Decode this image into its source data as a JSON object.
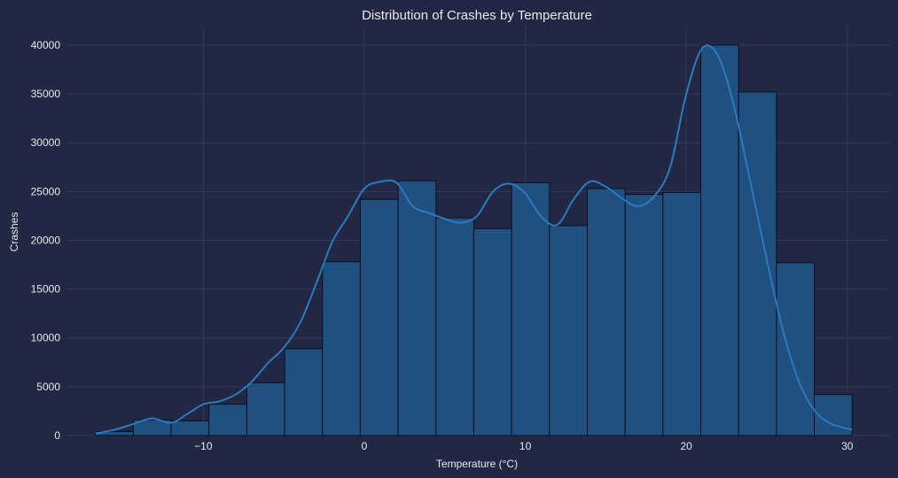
{
  "colors": {
    "background": "#222844",
    "bar_fill": "#1f5080",
    "bar_edge": "#0a0f1e",
    "kde_line": "#2a7bbf",
    "grid": "#303a5e",
    "text": "#e8e8ee"
  },
  "chart_data": {
    "type": "bar",
    "subtype": "histogram",
    "title": "Distribution of Crashes by Temperature",
    "xlabel": "Temperature (°C)",
    "ylabel": "Crashes",
    "xlim": [
      -18.5,
      32.6
    ],
    "ylim": [
      0,
      41900
    ],
    "xticks": [
      -10,
      0,
      10,
      20,
      30
    ],
    "xtick_labels": [
      "−10",
      "0",
      "10",
      "20",
      "30"
    ],
    "yticks": [
      0,
      5000,
      10000,
      15000,
      20000,
      25000,
      30000,
      35000,
      40000
    ],
    "ytick_labels": [
      "0",
      "5000",
      "10000",
      "15000",
      "20000",
      "25000",
      "30000",
      "35000",
      "40000"
    ],
    "grid": true,
    "bins": [
      {
        "x0": -16.7,
        "x1": -14.35,
        "value": 400
      },
      {
        "x0": -14.35,
        "x1": -12.0,
        "value": 1600
      },
      {
        "x0": -12.0,
        "x1": -9.65,
        "value": 1500
      },
      {
        "x0": -9.65,
        "x1": -7.3,
        "value": 3200
      },
      {
        "x0": -7.3,
        "x1": -4.95,
        "value": 5400
      },
      {
        "x0": -4.95,
        "x1": -2.6,
        "value": 8900
      },
      {
        "x0": -2.6,
        "x1": -0.25,
        "value": 17800
      },
      {
        "x0": -0.25,
        "x1": 2.1,
        "value": 24200
      },
      {
        "x0": 2.1,
        "x1": 4.45,
        "value": 26100
      },
      {
        "x0": 4.45,
        "x1": 6.8,
        "value": 22300
      },
      {
        "x0": 6.8,
        "x1": 9.15,
        "value": 21200
      },
      {
        "x0": 9.15,
        "x1": 11.5,
        "value": 25900
      },
      {
        "x0": 11.5,
        "x1": 13.85,
        "value": 21500
      },
      {
        "x0": 13.85,
        "x1": 16.2,
        "value": 25300
      },
      {
        "x0": 16.2,
        "x1": 18.55,
        "value": 24700
      },
      {
        "x0": 18.55,
        "x1": 20.9,
        "value": 24900
      },
      {
        "x0": 20.9,
        "x1": 23.25,
        "value": 40000
      },
      {
        "x0": 23.25,
        "x1": 25.6,
        "value": 35200
      },
      {
        "x0": 25.6,
        "x1": 27.95,
        "value": 17700
      },
      {
        "x0": 27.95,
        "x1": 30.3,
        "value": 4200
      }
    ],
    "kde": {
      "x": [
        -16.7,
        -15.5,
        -14.3,
        -13.2,
        -12.0,
        -11.0,
        -10.0,
        -9.0,
        -8.0,
        -7.0,
        -6.0,
        -5.0,
        -4.0,
        -3.0,
        -2.0,
        -1.0,
        0.0,
        1.0,
        2.0,
        3.0,
        4.0,
        5.0,
        6.0,
        7.0,
        8.0,
        9.0,
        10.0,
        11.0,
        12.0,
        13.0,
        14.0,
        15.0,
        16.0,
        17.0,
        18.0,
        19.0,
        20.0,
        21.0,
        22.0,
        23.0,
        24.0,
        25.0,
        26.0,
        27.0,
        28.0,
        29.0,
        30.3
      ],
      "y": [
        200,
        600,
        1200,
        1750,
        1300,
        2200,
        3200,
        3500,
        4200,
        5500,
        7400,
        9000,
        11500,
        15500,
        19800,
        22500,
        25300,
        26000,
        25900,
        23500,
        22800,
        22200,
        21800,
        22500,
        25000,
        25800,
        24800,
        22400,
        21600,
        24200,
        26000,
        25500,
        24300,
        23500,
        24500,
        27500,
        35000,
        39700,
        38800,
        33500,
        25800,
        18000,
        10800,
        5500,
        2500,
        1200,
        600
      ]
    }
  }
}
